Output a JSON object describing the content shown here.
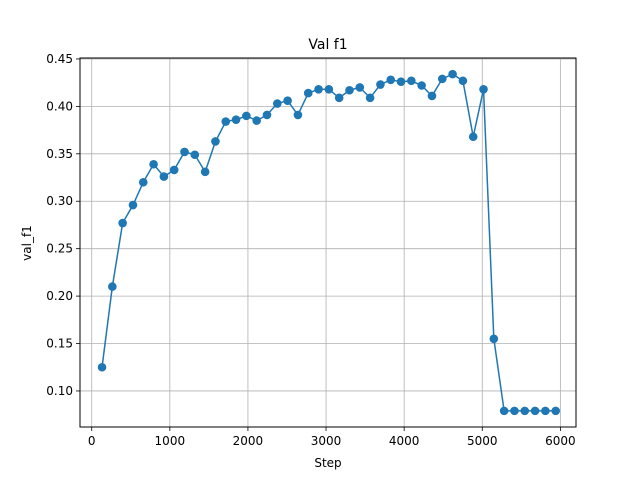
{
  "chart_data": {
    "type": "line",
    "title": "Val f1",
    "xlabel": "Step",
    "ylabel": "val_f1",
    "xlim": [
      -150,
      6200
    ],
    "ylim": [
      0.062,
      0.451
    ],
    "xticks": [
      0,
      1000,
      2000,
      3000,
      4000,
      5000,
      6000
    ],
    "yticks": [
      0.1,
      0.15,
      0.2,
      0.25,
      0.3,
      0.35,
      0.4,
      0.45
    ],
    "xtick_labels": [
      "0",
      "1000",
      "2000",
      "3000",
      "4000",
      "5000",
      "6000"
    ],
    "ytick_labels": [
      "0.10",
      "0.15",
      "0.20",
      "0.25",
      "0.30",
      "0.35",
      "0.40",
      "0.45"
    ],
    "grid": true,
    "legend": false,
    "color": "#1f77b4",
    "series": [
      {
        "x": [
          132,
          264,
          396,
          528,
          660,
          792,
          924,
          1056,
          1188,
          1320,
          1452,
          1584,
          1716,
          1848,
          1980,
          2112,
          2244,
          2376,
          2508,
          2640,
          2772,
          2904,
          3036,
          3168,
          3300,
          3432,
          3564,
          3696,
          3828,
          3960,
          4092,
          4224,
          4356,
          4488,
          4620,
          4752,
          4884,
          5016,
          5148,
          5280,
          5412,
          5544,
          5676,
          5808,
          5940
        ],
        "y": [
          0.125,
          0.21,
          0.277,
          0.296,
          0.32,
          0.339,
          0.326,
          0.333,
          0.352,
          0.349,
          0.331,
          0.363,
          0.384,
          0.386,
          0.39,
          0.385,
          0.391,
          0.403,
          0.406,
          0.391,
          0.414,
          0.418,
          0.418,
          0.409,
          0.417,
          0.42,
          0.409,
          0.423,
          0.428,
          0.426,
          0.427,
          0.422,
          0.411,
          0.429,
          0.434,
          0.427,
          0.368,
          0.418,
          0.155,
          0.079,
          0.079,
          0.079,
          0.079,
          0.079,
          0.079
        ]
      }
    ]
  }
}
